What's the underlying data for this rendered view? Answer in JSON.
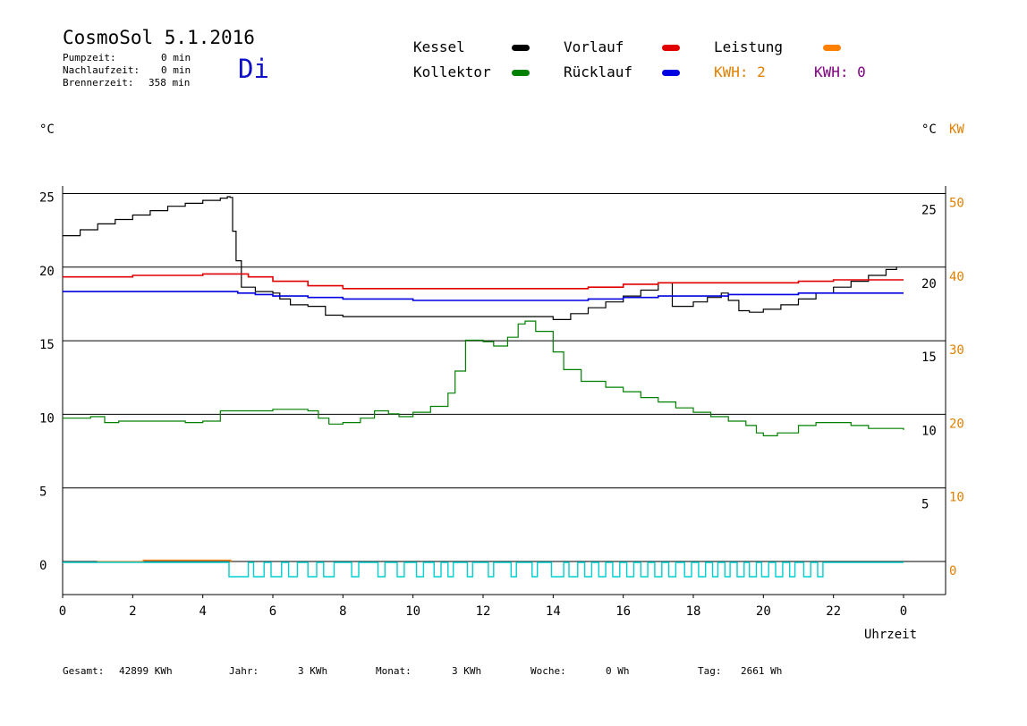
{
  "header": {
    "title": "CosmoSol 5.1.2016",
    "day": "Di",
    "stats": [
      {
        "label": "Pumpzeit:",
        "value": "0 min"
      },
      {
        "label": "Nachlaufzeit:",
        "value": "0 min"
      },
      {
        "label": "Brennerzeit:",
        "value": "358 min"
      }
    ]
  },
  "legend": {
    "kessel": "Kessel",
    "kollektor": "Kollektor",
    "vorlauf": "Vorlauf",
    "ruecklauf": "Rücklauf",
    "leistung": "Leistung",
    "kwh1": "KWH: 2",
    "kwh2": "KWH: 0"
  },
  "axes": {
    "left_unit": "°C",
    "right_unit": "°C",
    "right_unit2": "KW",
    "xlabel": "Uhrzeit"
  },
  "footer": {
    "gesamt_label": "Gesamt:",
    "gesamt_value": "42899 KWh",
    "jahr_label": "Jahr:",
    "jahr_value": "3 KWh",
    "monat_label": "Monat:",
    "monat_value": "3 KWh",
    "woche_label": "Woche:",
    "woche_value": "0 Wh",
    "tag_label": "Tag:",
    "tag_value": "2661 Wh"
  },
  "colors": {
    "kessel": "#000000",
    "kollektor": "#008000",
    "vorlauf": "#e00000",
    "ruecklauf": "#0000e0",
    "leistung": "#ff8000",
    "kwh1": "#e08000",
    "kwh2": "#800080",
    "pump": "#00d0d0",
    "right_kw": "#e08000"
  },
  "chart_data": {
    "type": "line",
    "xlabel": "Uhrzeit",
    "xlim": [
      0,
      24
    ],
    "ylim": [
      -1,
      26
    ],
    "y2lim": [
      -2,
      52
    ],
    "x_ticks": [
      "0",
      "2",
      "4",
      "6",
      "8",
      "10",
      "12",
      "14",
      "16",
      "18",
      "20",
      "22",
      "0"
    ],
    "y_ticks_left": [
      "0",
      "5",
      "10",
      "15",
      "20",
      "25"
    ],
    "y_ticks_right_temp": [
      "5",
      "10",
      "15",
      "20",
      "25"
    ],
    "y_ticks_right_kw": [
      "0",
      "10",
      "20",
      "30",
      "40",
      "50"
    ],
    "grid": "horizontal",
    "series": [
      {
        "name": "Kessel",
        "color": "#000000",
        "x": [
          0,
          0.5,
          1,
          1.5,
          2,
          2.5,
          3,
          3.5,
          4,
          4.5,
          4.7,
          4.78,
          4.85,
          4.95,
          5.1,
          5.5,
          6,
          6.2,
          6.5,
          7,
          7.5,
          8,
          9,
          10,
          11,
          12,
          13,
          13.6,
          14,
          14.5,
          15,
          15.5,
          16,
          16.5,
          17.0,
          17.2,
          17.4,
          17.7,
          18,
          18.4,
          18.8,
          19.0,
          19.3,
          19.6,
          20,
          20.5,
          21,
          21.5,
          22,
          22.5,
          23,
          23.5,
          23.8
        ],
        "y": [
          22.2,
          22.6,
          23.0,
          23.3,
          23.6,
          23.9,
          24.2,
          24.4,
          24.6,
          24.75,
          24.85,
          24.8,
          22.5,
          20.5,
          18.7,
          18.4,
          18.3,
          17.9,
          17.5,
          17.4,
          16.8,
          16.7,
          16.7,
          16.7,
          16.7,
          16.7,
          16.7,
          16.7,
          16.5,
          16.9,
          17.3,
          17.7,
          18.1,
          18.5,
          19.0,
          19.0,
          17.4,
          17.4,
          17.7,
          18.0,
          18.3,
          17.8,
          17.1,
          17.0,
          17.2,
          17.5,
          17.9,
          18.3,
          18.7,
          19.1,
          19.5,
          19.9,
          20.1
        ]
      },
      {
        "name": "Vorlauf",
        "color": "#e00000",
        "x": [
          0,
          2,
          4,
          4.8,
          5.3,
          6,
          7,
          8,
          9,
          10,
          11,
          12,
          13,
          14,
          15,
          16,
          17,
          18,
          19,
          20,
          21,
          22,
          23,
          24
        ],
        "y": [
          19.4,
          19.5,
          19.6,
          19.6,
          19.4,
          19.1,
          18.8,
          18.6,
          18.6,
          18.6,
          18.6,
          18.6,
          18.6,
          18.6,
          18.7,
          18.9,
          19.0,
          19.0,
          19.0,
          19.0,
          19.1,
          19.2,
          19.2,
          19.2
        ]
      },
      {
        "name": "Rücklauf",
        "color": "#0000e0",
        "x": [
          0,
          2,
          4,
          5,
          5.5,
          6,
          7,
          8,
          9,
          10,
          11,
          12,
          13,
          14,
          15,
          16,
          17,
          18,
          19,
          20,
          21,
          22,
          23,
          24
        ],
        "y": [
          18.4,
          18.4,
          18.4,
          18.3,
          18.2,
          18.1,
          18.0,
          17.9,
          17.9,
          17.8,
          17.8,
          17.8,
          17.8,
          17.8,
          17.9,
          18.0,
          18.1,
          18.1,
          18.2,
          18.2,
          18.3,
          18.3,
          18.3,
          18.3
        ]
      },
      {
        "name": "Kollektor",
        "color": "#008000",
        "x": [
          0,
          0.4,
          0.8,
          1.2,
          1.6,
          2,
          2.5,
          3,
          3.5,
          4,
          4.4,
          4.5,
          5,
          5.5,
          6,
          6.5,
          7,
          7.3,
          7.6,
          8,
          8.5,
          8.9,
          9.3,
          9.6,
          10,
          10.5,
          11,
          11.2,
          11.5,
          12,
          12.3,
          12.7,
          13,
          13.2,
          13.5,
          14,
          14.3,
          14.8,
          15.5,
          16,
          16.5,
          17,
          17.5,
          18,
          18.5,
          19,
          19.5,
          19.8,
          20,
          20.4,
          21,
          21.5,
          22,
          22.5,
          23,
          23.5,
          24
        ],
        "y": [
          9.8,
          9.8,
          9.9,
          9.5,
          9.6,
          9.6,
          9.6,
          9.6,
          9.5,
          9.6,
          9.6,
          10.3,
          10.3,
          10.3,
          10.4,
          10.4,
          10.3,
          9.8,
          9.4,
          9.5,
          9.8,
          10.3,
          10.1,
          9.9,
          10.2,
          10.6,
          11.5,
          13.0,
          15.1,
          15.0,
          14.7,
          15.3,
          16.2,
          16.4,
          15.7,
          14.3,
          13.1,
          12.3,
          11.9,
          11.6,
          11.2,
          10.9,
          10.5,
          10.2,
          9.9,
          9.6,
          9.3,
          8.8,
          8.6,
          8.8,
          9.3,
          9.5,
          9.5,
          9.3,
          9.1,
          9.1,
          9.0
        ]
      },
      {
        "name": "Leistung",
        "color": "#ff8000",
        "axis": "right_kw",
        "x": [
          0,
          1,
          2,
          2.3,
          4.75,
          4.8
        ],
        "y": [
          0.0,
          0.1,
          0.1,
          0.3,
          0.3,
          0.0
        ]
      }
    ],
    "pump_signal": {
      "color": "#00d0d0",
      "on_intervals": [
        [
          4.75,
          5.3
        ],
        [
          5.45,
          5.75
        ],
        [
          5.95,
          6.25
        ],
        [
          6.45,
          6.7
        ],
        [
          7.0,
          7.25
        ],
        [
          7.45,
          7.75
        ],
        [
          8.25,
          8.45
        ],
        [
          9.0,
          9.2
        ],
        [
          9.55,
          9.75
        ],
        [
          10.1,
          10.3
        ],
        [
          10.6,
          10.8
        ],
        [
          11.0,
          11.15
        ],
        [
          11.55,
          11.7
        ],
        [
          12.15,
          12.3
        ],
        [
          12.8,
          12.95
        ],
        [
          13.4,
          13.55
        ],
        [
          13.95,
          14.3
        ],
        [
          14.45,
          14.7
        ],
        [
          14.9,
          15.1
        ],
        [
          15.3,
          15.5
        ],
        [
          15.7,
          15.9
        ],
        [
          16.1,
          16.3
        ],
        [
          16.5,
          16.7
        ],
        [
          16.9,
          17.1
        ],
        [
          17.3,
          17.5
        ],
        [
          17.75,
          17.95
        ],
        [
          18.15,
          18.35
        ],
        [
          18.55,
          18.7
        ],
        [
          18.9,
          19.05
        ],
        [
          19.25,
          19.45
        ],
        [
          19.6,
          19.8
        ],
        [
          19.95,
          20.15
        ],
        [
          20.35,
          20.55
        ],
        [
          20.75,
          20.9
        ],
        [
          21.15,
          21.35
        ],
        [
          21.55,
          21.7
        ]
      ]
    }
  }
}
